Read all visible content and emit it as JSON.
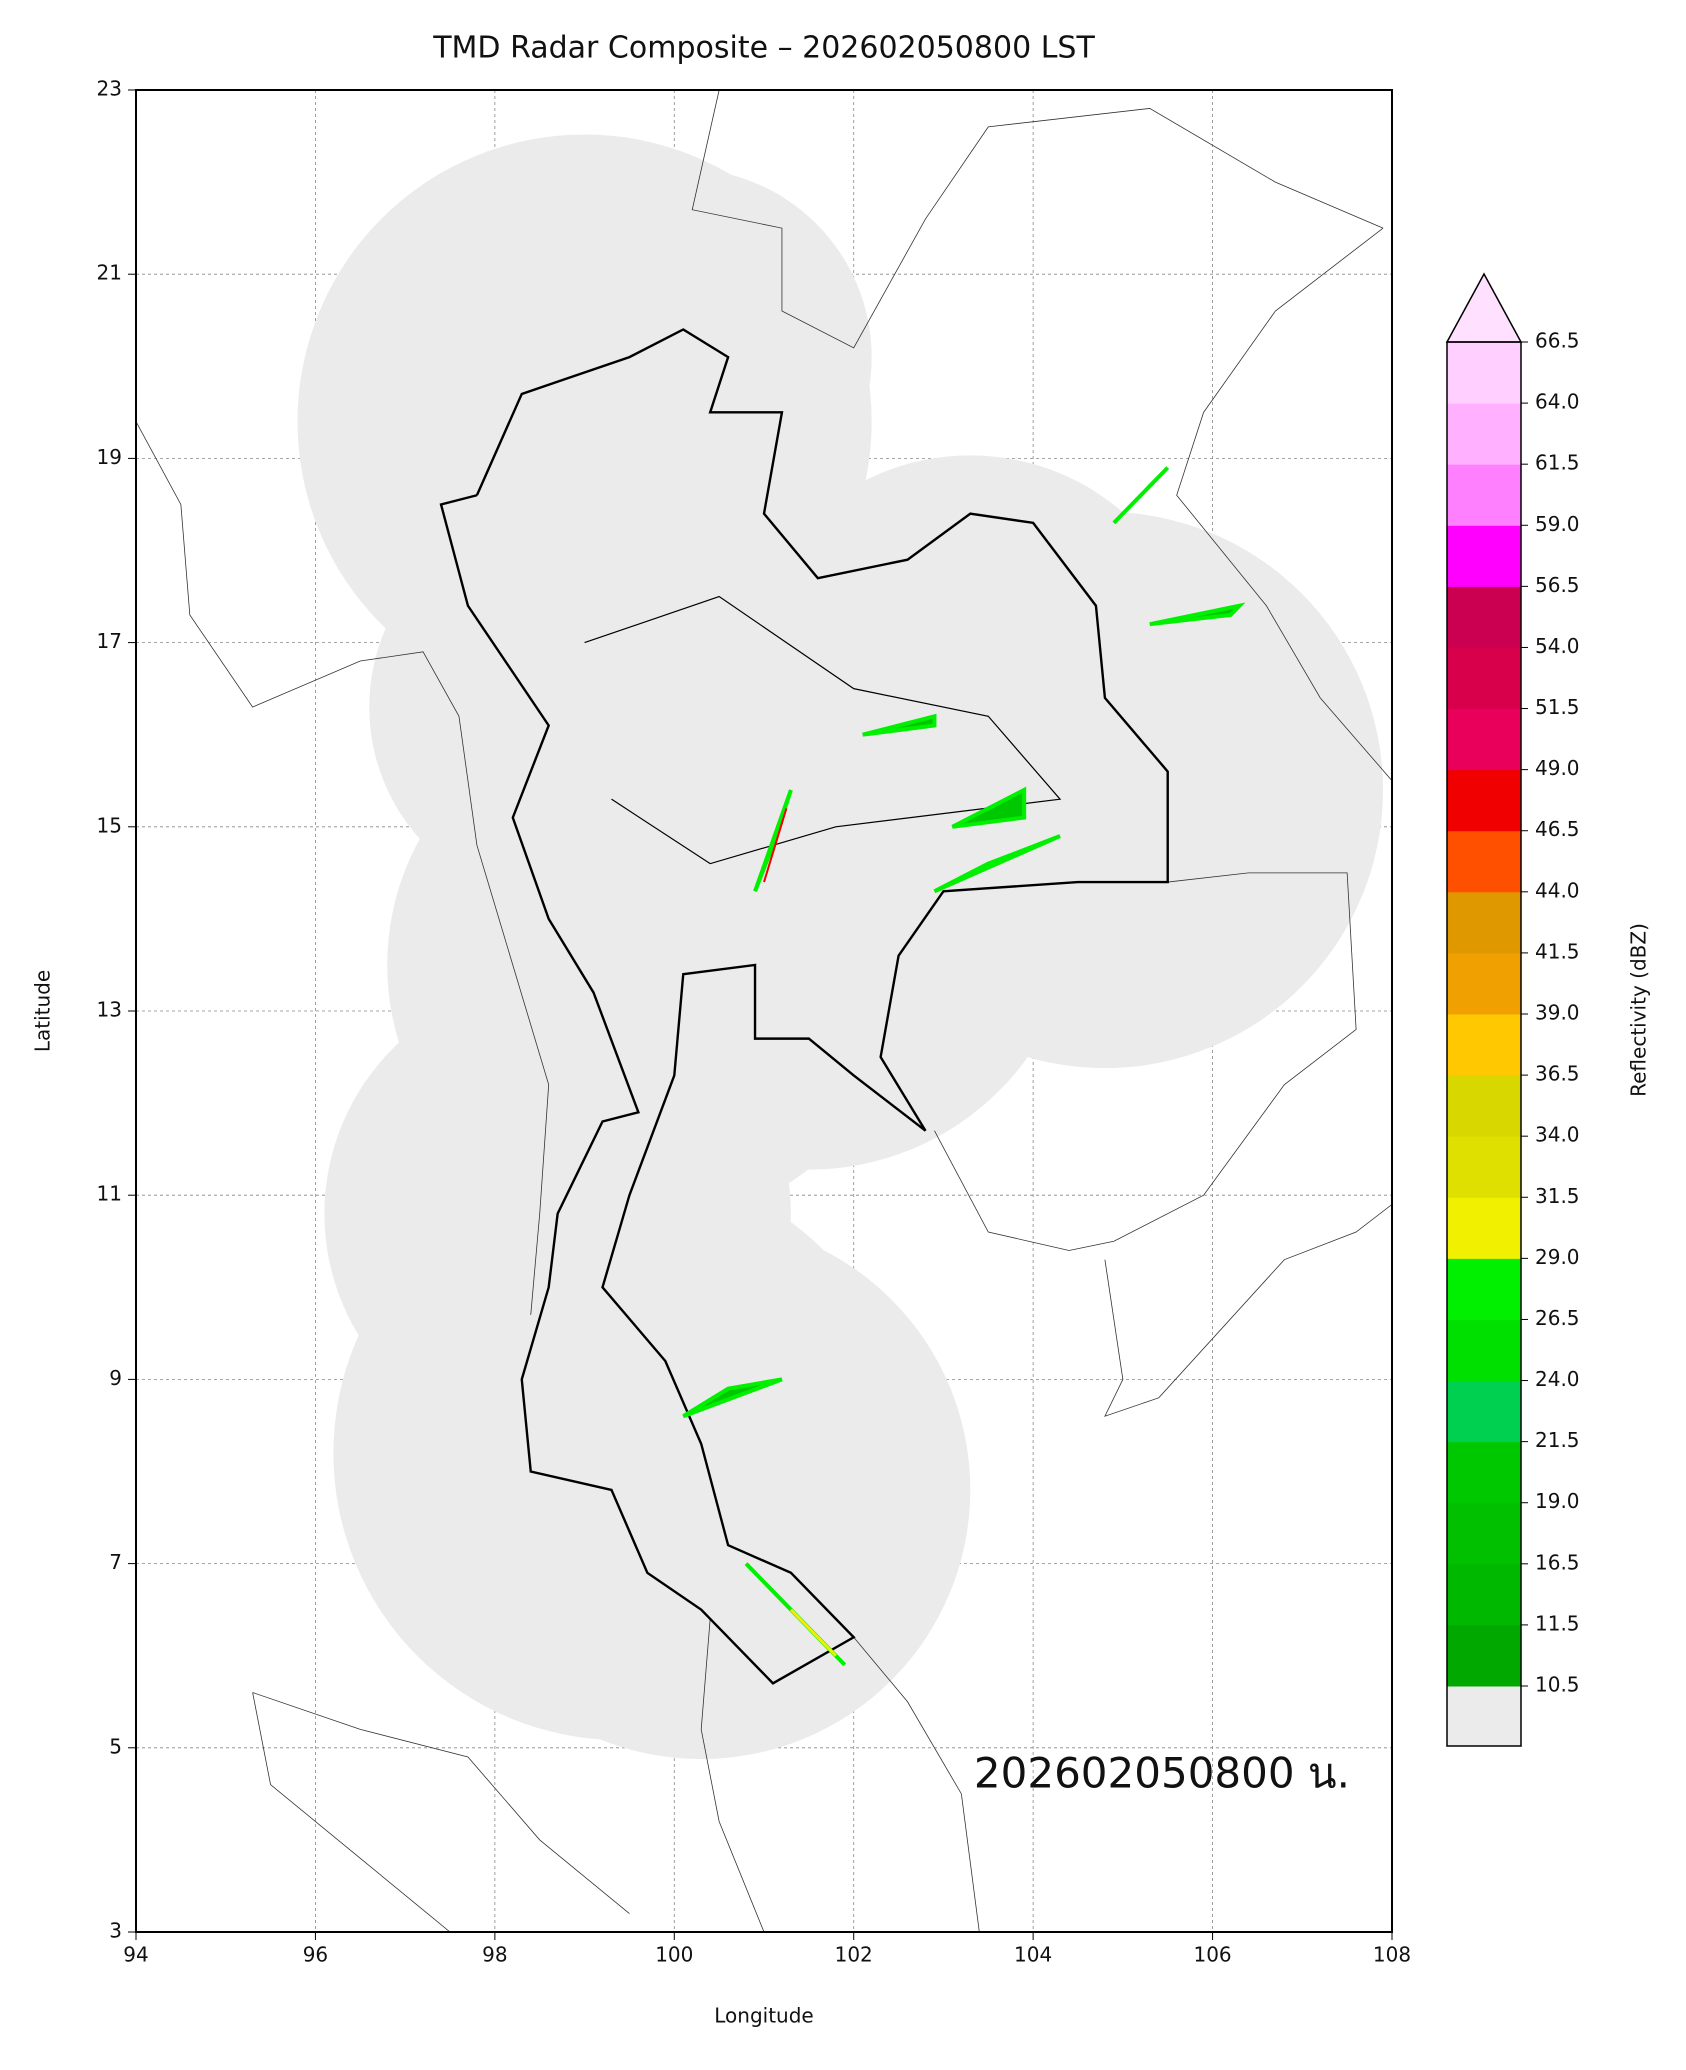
{
  "chart_data": {
    "type": "map",
    "title": "TMD Radar Composite – 202602050800 LST",
    "x_label": "Longitude",
    "y_label": "Latitude",
    "xlim": [
      94,
      108
    ],
    "ylim": [
      3,
      23
    ],
    "xticks": [
      94,
      96,
      98,
      100,
      102,
      104,
      106,
      108
    ],
    "yticks": [
      3,
      5,
      7,
      9,
      11,
      13,
      15,
      17,
      19,
      21,
      23
    ],
    "grid": true,
    "annotation": "202602050800 น.",
    "colorbar": {
      "label": "Reflectivity (dBZ)",
      "ticks": [
        10.5,
        {
          "value": 11.5,
          "label": "11.5"
        },
        16.5,
        {
          "value": 19,
          "label": "19.0"
        },
        21.5,
        {
          "value": 24,
          "label": "24.0"
        },
        26.5,
        {
          "value": 29,
          "label": "29.0"
        },
        31.5,
        {
          "value": 34,
          "label": "34.0"
        },
        36.5,
        {
          "value": 39,
          "label": "39.0"
        },
        41.5,
        {
          "value": 44,
          "label": "44.0"
        },
        46.5,
        {
          "value": 49,
          "label": "49.0"
        },
        51.5,
        {
          "value": 54,
          "label": "54.0"
        },
        56.5,
        {
          "value": 59,
          "label": "59.0"
        },
        61.5,
        {
          "value": 64,
          "label": "64.0"
        },
        66.5
      ],
      "colors": [
        "#00a800",
        "#00b800",
        "#00c000",
        "#00c800",
        "#00d050",
        "#00e000",
        "#00f000",
        "#f0f000",
        "#e0e000",
        "#d8d800",
        "#ffc800",
        "#f0a000",
        "#e09800",
        "#ff5000",
        "#f00000",
        "#e8005a",
        "#d8004a",
        "#cc0050",
        "#ff00ff",
        "#ff80ff",
        "#ffb0ff",
        "#ffd0ff"
      ],
      "over_color": "#ffe0ff",
      "under_color": "#ebebeb"
    }
  }
}
